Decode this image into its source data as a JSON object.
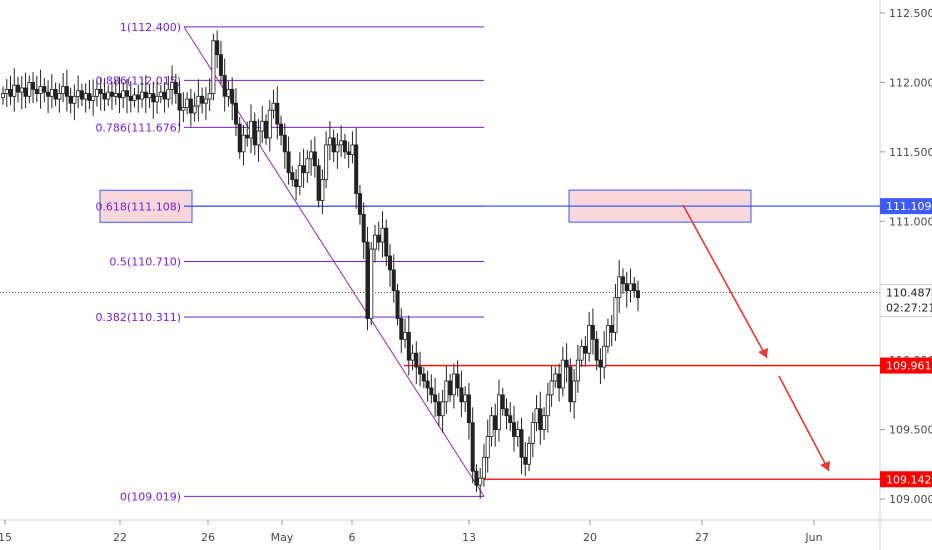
{
  "chart_data": {
    "type": "candlestick",
    "title": "",
    "xlabel": "",
    "ylabel": "",
    "ylim": [
      108.9,
      112.6
    ],
    "x_tick_labels": [
      "15",
      "22",
      "26",
      "May",
      "6",
      "13",
      "20",
      "27",
      "Jun"
    ],
    "y_tick_labels": [
      "112.500",
      "112.000",
      "111.500",
      "111.000",
      "110.500",
      "110.000",
      "109.500",
      "109.000"
    ],
    "y_ticks": [
      112.5,
      112.0,
      111.5,
      111.0,
      110.5,
      110.0,
      109.5,
      109.0
    ],
    "fibonacci_levels": [
      {
        "ratio": "1",
        "price": 112.4,
        "label": "1(112.400)"
      },
      {
        "ratio": "0.886",
        "price": 112.015,
        "label": "0.886(112.015)"
      },
      {
        "ratio": "0.786",
        "price": 111.676,
        "label": "0.786(111.676)"
      },
      {
        "ratio": "0.618",
        "price": 111.108,
        "label": "0.618(111.108)"
      },
      {
        "ratio": "0.5",
        "price": 110.71,
        "label": "0.5(110.710)"
      },
      {
        "ratio": "0.382",
        "price": 110.311,
        "label": "0.382(110.311)"
      },
      {
        "ratio": "0",
        "price": 109.019,
        "label": "0(109.019)"
      }
    ],
    "horizontal_lines": [
      {
        "price": 111.109,
        "label": "111.109",
        "color": "#3d5afe"
      },
      {
        "price": 109.961,
        "label": "109.961",
        "color": "#ff0000"
      },
      {
        "price": 109.142,
        "label": "109.142",
        "color": "#ff0000"
      }
    ],
    "current_price": {
      "price": 110.487,
      "label": "110.487",
      "countdown": "02:27:21"
    },
    "candles_close": [
      111.92,
      111.95,
      111.9,
      111.98,
      111.93,
      111.96,
      111.9,
      112.0,
      111.95,
      111.92,
      111.97,
      111.93,
      111.9,
      111.95,
      111.88,
      111.92,
      111.97,
      111.9,
      111.85,
      111.9,
      111.94,
      111.88,
      111.92,
      111.87,
      111.9,
      111.95,
      111.92,
      111.88,
      111.93,
      111.9,
      111.92,
      111.89,
      111.94,
      111.9,
      111.87,
      111.91,
      111.88,
      111.93,
      111.89,
      111.92,
      111.86,
      111.9,
      111.93,
      111.88,
      111.95,
      112.0,
      111.92,
      111.8,
      111.82,
      111.88,
      111.78,
      111.83,
      111.9,
      111.85,
      111.88,
      111.92,
      112.3,
      112.2,
      112.05,
      111.9,
      111.95,
      111.85,
      111.7,
      111.5,
      111.62,
      111.6,
      111.72,
      111.55,
      111.65,
      111.72,
      111.6,
      111.8,
      111.85,
      111.7,
      111.62,
      111.5,
      111.35,
      111.3,
      111.25,
      111.4,
      111.35,
      111.45,
      111.5,
      111.4,
      111.15,
      111.3,
      111.55,
      111.6,
      111.5,
      111.55,
      111.58,
      111.5,
      111.48,
      111.55,
      111.2,
      111.05,
      110.85,
      110.3,
      110.8,
      110.9,
      110.85,
      110.95,
      110.75,
      110.65,
      110.5,
      110.3,
      110.15,
      110.2,
      110.0,
      110.05,
      109.95,
      109.9,
      109.85,
      109.8,
      109.75,
      109.7,
      109.6,
      109.7,
      109.85,
      109.75,
      109.9,
      109.8,
      109.7,
      109.75,
      109.55,
      109.2,
      109.1,
      109.15,
      109.3,
      109.45,
      109.6,
      109.5,
      109.75,
      109.65,
      109.6,
      109.55,
      109.45,
      109.5,
      109.3,
      109.25,
      109.4,
      109.55,
      109.65,
      109.5,
      109.6,
      109.75,
      109.85,
      109.9,
      109.8,
      110.0,
      109.95,
      109.7,
      109.85,
      110.0,
      110.1,
      110.05,
      110.25,
      110.15,
      110.0,
      109.95,
      110.1,
      110.25,
      110.2,
      110.45,
      110.6,
      110.55,
      110.5,
      110.55,
      110.5,
      110.45
    ]
  },
  "annotations": {
    "zone_upper_color": "#f8d7da",
    "zone_border_color": "#3d5afe",
    "arrow_color": "#e53935",
    "fib_color": "#7a1fd6",
    "trend_line_color": "#9c27b0"
  }
}
